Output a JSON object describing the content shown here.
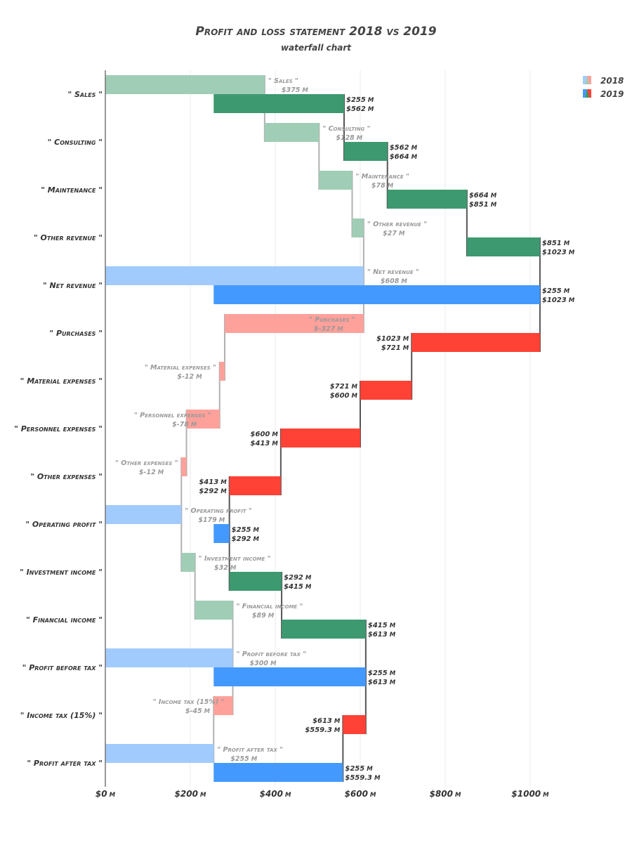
{
  "chart_data": {
    "type": "bar",
    "title": "Profit and loss statement 2018 vs 2019",
    "subtitle": "waterfall chart",
    "xlim": [
      0,
      1200
    ],
    "x_ticks": [
      0,
      200,
      400,
      600,
      800,
      1000
    ],
    "x_tick_labels": [
      "$0",
      "$200",
      "$400",
      "$600",
      "$800",
      "$1000"
    ],
    "x_tick_unit": "M",
    "orientation": "horizontal",
    "grid": true,
    "legend_position": "top-right",
    "colors": {
      "increase_2018": "#a0cdb6",
      "increase_2019": "#3d9970",
      "decrease_2018": "#ffa19b",
      "decrease_2019": "#ff4136",
      "total_2018": "#a2cbfd",
      "total_2019": "#4499fe",
      "connector_2018": "#b0b0b0",
      "connector_2019": "#555555"
    },
    "series": [
      {
        "name": "2018",
        "items": [
          {
            "category": "\" Sales \"",
            "kind": "increase",
            "base": 0,
            "end": 375,
            "label": "\" Sales \"",
            "value_label": "$375"
          },
          {
            "category": "\" Consulting \"",
            "kind": "increase",
            "base": 375,
            "end": 503,
            "label": "\" Consulting \"",
            "value_label": "$128"
          },
          {
            "category": "\" Maintenance \"",
            "kind": "increase",
            "base": 503,
            "end": 581,
            "label": "\" Maintenance \"",
            "value_label": "$78"
          },
          {
            "category": "\" Other revenue \"",
            "kind": "increase",
            "base": 581,
            "end": 608,
            "label": "\" Other revenue \"",
            "value_label": "$27"
          },
          {
            "category": "\" Net revenue \"",
            "kind": "total",
            "base": 0,
            "end": 608,
            "label": "\" Net revenue \"",
            "value_label": "$608"
          },
          {
            "category": "\" Purchases \"",
            "kind": "decrease",
            "base": 608,
            "end": 281,
            "label": "\" Purchases \"",
            "value_label": "$-327"
          },
          {
            "category": "\" Material expenses \"",
            "kind": "decrease",
            "base": 281,
            "end": 269,
            "label": "\" Material expenses \"",
            "value_label": "$-12"
          },
          {
            "category": "\" Personnel expenses \"",
            "kind": "decrease",
            "base": 269,
            "end": 191,
            "label": "\" Personnel expenses \"",
            "value_label": "$-78"
          },
          {
            "category": "\" Other expenses \"",
            "kind": "decrease",
            "base": 191,
            "end": 179,
            "label": "\" Other expenses \"",
            "value_label": "$-12"
          },
          {
            "category": "\" Operating profit \"",
            "kind": "total",
            "base": 0,
            "end": 179,
            "label": "\" Operating profit \"",
            "value_label": "$179"
          },
          {
            "category": "\" Investment income \"",
            "kind": "increase",
            "base": 179,
            "end": 211,
            "label": "\" Investment income \"",
            "value_label": "$32"
          },
          {
            "category": "\" Financial income \"",
            "kind": "increase",
            "base": 211,
            "end": 300,
            "label": "\" Financial income \"",
            "value_label": "$89"
          },
          {
            "category": "\" Profit before tax \"",
            "kind": "total",
            "base": 0,
            "end": 300,
            "label": "\" Profit before tax \"",
            "value_label": "$300"
          },
          {
            "category": "\" Income tax (15%) \"",
            "kind": "decrease",
            "base": 300,
            "end": 255,
            "label": "\" Income tax (15%) \"",
            "value_label": "$-45"
          },
          {
            "category": "\" Profit after tax \"",
            "kind": "total",
            "base": 0,
            "end": 255,
            "label": "\" Profit after tax \"",
            "value_label": "$255"
          }
        ]
      },
      {
        "name": "2019",
        "items": [
          {
            "category": "\" Sales \"",
            "kind": "increase",
            "base": 255,
            "end": 562,
            "value_label_1": "$255",
            "value_label_2": "$562"
          },
          {
            "category": "\" Consulting \"",
            "kind": "increase",
            "base": 562,
            "end": 664,
            "value_label_1": "$562",
            "value_label_2": "$664"
          },
          {
            "category": "\" Maintenance \"",
            "kind": "increase",
            "base": 664,
            "end": 851,
            "value_label_1": "$664",
            "value_label_2": "$851"
          },
          {
            "category": "\" Other revenue \"",
            "kind": "increase",
            "base": 851,
            "end": 1023,
            "value_label_1": "$851",
            "value_label_2": "$1023"
          },
          {
            "category": "\" Net revenue \"",
            "kind": "total",
            "base": 255,
            "end": 1023,
            "value_label_1": "$255",
            "value_label_2": "$1023"
          },
          {
            "category": "\" Purchases \"",
            "kind": "decrease",
            "base": 1023,
            "end": 721,
            "value_label_1": "$1023",
            "value_label_2": "$721"
          },
          {
            "category": "\" Material expenses \"",
            "kind": "decrease",
            "base": 721,
            "end": 600,
            "value_label_1": "$721",
            "value_label_2": "$600"
          },
          {
            "category": "\" Personnel expenses \"",
            "kind": "decrease",
            "base": 600,
            "end": 413,
            "value_label_1": "$600",
            "value_label_2": "$413"
          },
          {
            "category": "\" Other expenses \"",
            "kind": "decrease",
            "base": 413,
            "end": 292,
            "value_label_1": "$413",
            "value_label_2": "$292"
          },
          {
            "category": "\" Operating profit \"",
            "kind": "total",
            "base": 255,
            "end": 292,
            "value_label_1": "$255",
            "value_label_2": "$292"
          },
          {
            "category": "\" Investment income \"",
            "kind": "increase",
            "base": 292,
            "end": 415,
            "value_label_1": "$292",
            "value_label_2": "$415"
          },
          {
            "category": "\" Financial income \"",
            "kind": "increase",
            "base": 415,
            "end": 613,
            "value_label_1": "$415",
            "value_label_2": "$613"
          },
          {
            "category": "\" Profit before tax \"",
            "kind": "total",
            "base": 255,
            "end": 613,
            "value_label_1": "$255",
            "value_label_2": "$613"
          },
          {
            "category": "\" Income tax (15%) \"",
            "kind": "decrease",
            "base": 613,
            "end": 559.3,
            "value_label_1": "$613",
            "value_label_2": "$559.3"
          },
          {
            "category": "\" Profit after tax \"",
            "kind": "total",
            "base": 255,
            "end": 559.3,
            "value_label_1": "$255",
            "value_label_2": "$559.3"
          }
        ]
      }
    ],
    "value_unit": "M",
    "legend": [
      "2018",
      "2019"
    ]
  }
}
